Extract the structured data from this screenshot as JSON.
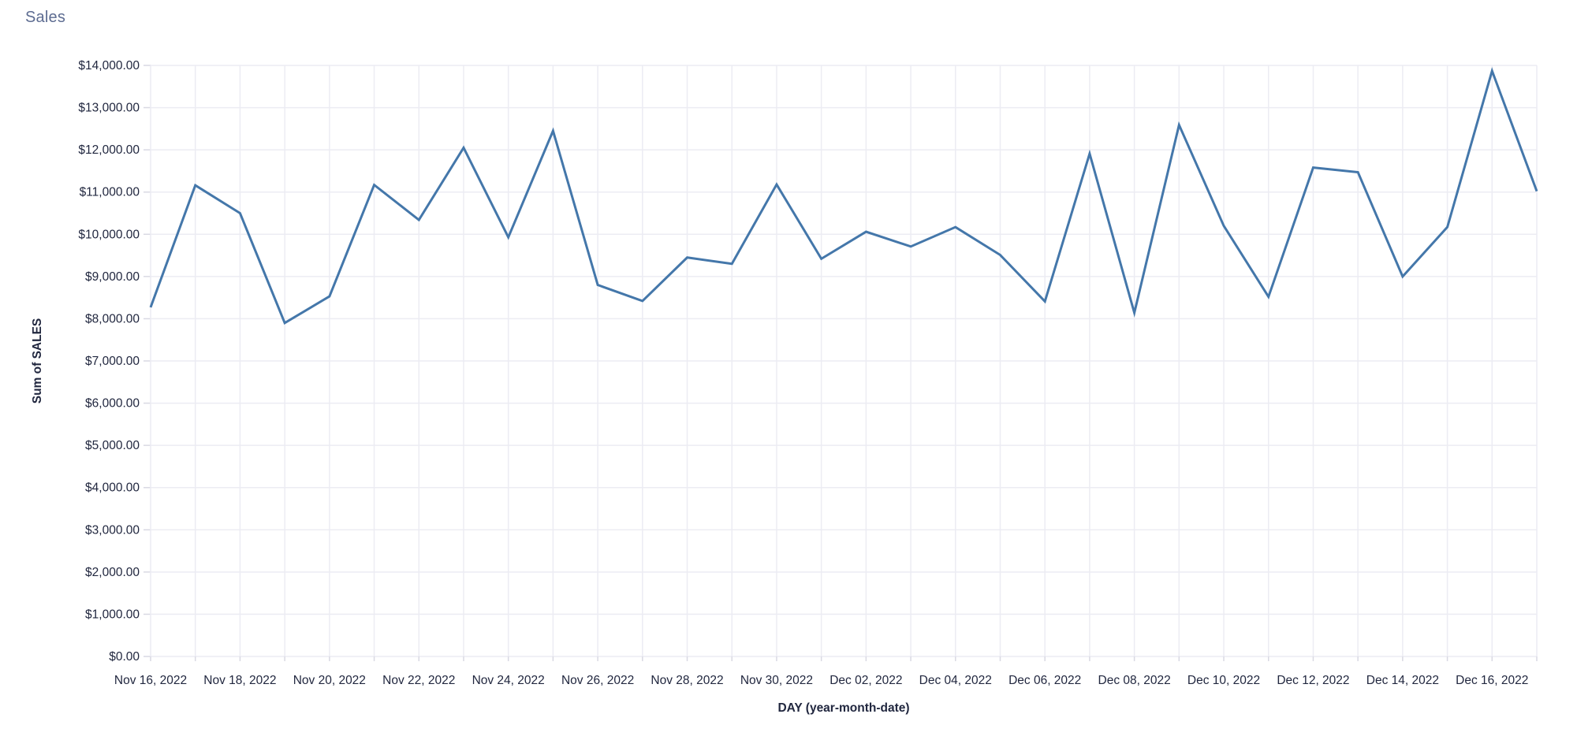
{
  "title": "Sales",
  "colors": {
    "line": "#4477aa",
    "grid": "#ececf3",
    "tick": "#d9d9e3",
    "axis_label": "#21273f",
    "axis_title": "#21273f",
    "chart_title": "#5d6c91",
    "background": "#ffffff"
  },
  "chart_data": {
    "type": "line",
    "title": "Sales",
    "xlabel": "DAY (year-month-date)",
    "ylabel": "Sum of SALES",
    "ylim": [
      0,
      14000
    ],
    "grid": true,
    "legend": false,
    "x": [
      "Nov 16, 2022",
      "Nov 17, 2022",
      "Nov 18, 2022",
      "Nov 19, 2022",
      "Nov 20, 2022",
      "Nov 21, 2022",
      "Nov 22, 2022",
      "Nov 23, 2022",
      "Nov 24, 2022",
      "Nov 25, 2022",
      "Nov 26, 2022",
      "Nov 27, 2022",
      "Nov 28, 2022",
      "Nov 29, 2022",
      "Nov 30, 2022",
      "Dec 01, 2022",
      "Dec 02, 2022",
      "Dec 03, 2022",
      "Dec 04, 2022",
      "Dec 05, 2022",
      "Dec 06, 2022",
      "Dec 07, 2022",
      "Dec 08, 2022",
      "Dec 09, 2022",
      "Dec 10, 2022",
      "Dec 11, 2022",
      "Dec 12, 2022",
      "Dec 13, 2022",
      "Dec 14, 2022",
      "Dec 15, 2022",
      "Dec 16, 2022",
      "Dec 17, 2022"
    ],
    "series": [
      {
        "name": "Sum of SALES",
        "values": [
          8270,
          11160,
          10500,
          7900,
          8530,
          11170,
          10340,
          12050,
          9930,
          12450,
          8800,
          8420,
          9450,
          9300,
          11180,
          9420,
          10060,
          9710,
          10170,
          9510,
          8410,
          11910,
          8140,
          12590,
          10200,
          8520,
          11580,
          11470,
          9000,
          10170,
          13870,
          11020
        ]
      }
    ],
    "x_tick_labels": [
      {
        "index": 0,
        "label": "Nov 16, 2022"
      },
      {
        "index": 2,
        "label": "Nov 18, 2022"
      },
      {
        "index": 4,
        "label": "Nov 20, 2022"
      },
      {
        "index": 6,
        "label": "Nov 22, 2022"
      },
      {
        "index": 8,
        "label": "Nov 24, 2022"
      },
      {
        "index": 10,
        "label": "Nov 26, 2022"
      },
      {
        "index": 12,
        "label": "Nov 28, 2022"
      },
      {
        "index": 14,
        "label": "Nov 30, 2022"
      },
      {
        "index": 16,
        "label": "Dec 02, 2022"
      },
      {
        "index": 18,
        "label": "Dec 04, 2022"
      },
      {
        "index": 20,
        "label": "Dec 06, 2022"
      },
      {
        "index": 22,
        "label": "Dec 08, 2022"
      },
      {
        "index": 24,
        "label": "Dec 10, 2022"
      },
      {
        "index": 26,
        "label": "Dec 12, 2022"
      },
      {
        "index": 28,
        "label": "Dec 14, 2022"
      },
      {
        "index": 30,
        "label": "Dec 16, 2022"
      }
    ],
    "y_tick_labels": [
      {
        "value": 0,
        "label": "$0.00"
      },
      {
        "value": 1000,
        "label": "$1,000.00"
      },
      {
        "value": 2000,
        "label": "$2,000.00"
      },
      {
        "value": 3000,
        "label": "$3,000.00"
      },
      {
        "value": 4000,
        "label": "$4,000.00"
      },
      {
        "value": 5000,
        "label": "$5,000.00"
      },
      {
        "value": 6000,
        "label": "$6,000.00"
      },
      {
        "value": 7000,
        "label": "$7,000.00"
      },
      {
        "value": 8000,
        "label": "$8,000.00"
      },
      {
        "value": 9000,
        "label": "$9,000.00"
      },
      {
        "value": 10000,
        "label": "$10,000.00"
      },
      {
        "value": 11000,
        "label": "$11,000.00"
      },
      {
        "value": 12000,
        "label": "$12,000.00"
      },
      {
        "value": 13000,
        "label": "$13,000.00"
      },
      {
        "value": 14000,
        "label": "$14,000.00"
      }
    ]
  }
}
